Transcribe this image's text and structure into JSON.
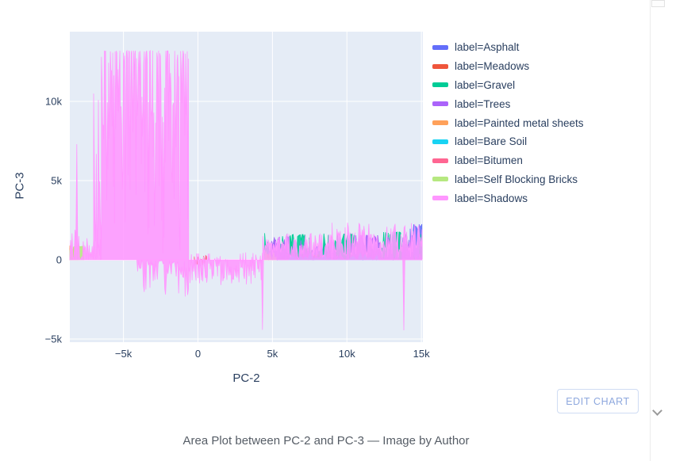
{
  "caption": "Area Plot between PC-2 and PC-3 — Image by Author",
  "edit_chart": {
    "label": "EDIT CHART"
  },
  "colors": {
    "panel_bg": "#E5ECF6",
    "grid": "#FFFFFF",
    "tick_text": "#2a3f5f",
    "caption_text": "#565d66",
    "edit_button_text": "#8ea8de",
    "edit_button_border": "#cfdcf3"
  },
  "chart_data": {
    "type": "area",
    "title": "",
    "xlabel": "PC-2",
    "ylabel": "PC-3",
    "xlim": [
      -8600,
      15100
    ],
    "ylim": [
      -5200,
      14400
    ],
    "grid": true,
    "legend_position": "right",
    "x_ticks": [
      {
        "value": -5000,
        "label": "−5k"
      },
      {
        "value": 0,
        "label": "0"
      },
      {
        "value": 5000,
        "label": "5k"
      },
      {
        "value": 10000,
        "label": "10k"
      },
      {
        "value": 15000,
        "label": "15k"
      }
    ],
    "y_ticks": [
      {
        "value": 10000,
        "label": "10k"
      },
      {
        "value": 5000,
        "label": "5k"
      },
      {
        "value": 0,
        "label": "0"
      },
      {
        "value": -5000,
        "label": "−5k"
      }
    ],
    "series": [
      {
        "name": "Asphalt",
        "legend": "label=Asphalt",
        "color": "#636EFA",
        "segments": [
          [
            4900,
            15050,
            0,
            1250,
            "spiky",
            110
          ],
          [
            14250,
            15050,
            100,
            2250,
            "dense",
            60
          ]
        ],
        "spikes": []
      },
      {
        "name": "Meadows",
        "legend": "label=Meadows",
        "color": "#EF553B",
        "segments": [
          [
            -8600,
            -8050,
            0,
            1000,
            "spiky",
            70
          ],
          [
            5600,
            9600,
            0,
            500,
            "spiky",
            130
          ]
        ],
        "spikes": []
      },
      {
        "name": "Gravel",
        "legend": "label=Gravel",
        "color": "#00CC96",
        "segments": [
          [
            -8600,
            -8250,
            0,
            550,
            "dense",
            60
          ],
          [
            4480,
            15050,
            0,
            1700,
            "spiky",
            75
          ],
          [
            6150,
            7250,
            100,
            1600,
            "dense",
            60
          ],
          [
            9250,
            10550,
            100,
            1650,
            "dense",
            60
          ],
          [
            12350,
            13650,
            100,
            1750,
            "dense",
            60
          ]
        ],
        "spikes": []
      },
      {
        "name": "Trees",
        "legend": "label=Trees",
        "color": "#AB63FA",
        "segments": [
          [
            4700,
            15050,
            0,
            1500,
            "spiky",
            85
          ],
          [
            5150,
            6150,
            100,
            1450,
            "dense",
            65
          ],
          [
            10600,
            12250,
            100,
            1550,
            "dense",
            70
          ],
          [
            13700,
            14300,
            100,
            1500,
            "dense",
            65
          ]
        ],
        "spikes": []
      },
      {
        "name": "Painted metal sheets",
        "legend": "label=Painted metal sheets",
        "color": "#FFA15A",
        "segments": [
          [
            -8600,
            -8180,
            0,
            900,
            "dense",
            60
          ],
          [
            4500,
            4950,
            0,
            850,
            "spiky",
            70
          ]
        ],
        "spikes": []
      },
      {
        "name": "Bare Soil",
        "legend": "label=Bare Soil",
        "color": "#19D3F3",
        "segments": [
          [
            6100,
            12100,
            0,
            430,
            "spiky",
            160
          ]
        ],
        "spikes": []
      },
      {
        "name": "Bitumen",
        "legend": "label=Bitumen",
        "color": "#FF6692",
        "segments": [
          [
            -8600,
            -8350,
            0,
            1400,
            "spiky",
            60
          ],
          [
            -250,
            600,
            -350,
            300,
            "noise",
            70
          ]
        ],
        "spikes": []
      },
      {
        "name": "Self Blocking Bricks",
        "legend": "label=Self Blocking Bricks",
        "color": "#B6E880",
        "segments": [
          [
            -8600,
            -7650,
            0,
            850,
            "dense",
            60
          ],
          [
            4480,
            5250,
            0,
            650,
            "spiky",
            85
          ]
        ],
        "spikes": []
      },
      {
        "name": "Shadows",
        "legend": "label=Shadows",
        "color": "#FF97FF",
        "segments": [
          [
            -8600,
            -6550,
            0,
            2300,
            "spiky",
            50
          ],
          [
            -7000,
            -6480,
            0,
            11000,
            "spiky",
            45
          ],
          [
            -6480,
            -620,
            300,
            13200,
            "dense",
            40
          ],
          [
            -4100,
            -620,
            -2500,
            -50,
            "spiky",
            55
          ],
          [
            -620,
            4350,
            -1600,
            500,
            "noise",
            45
          ],
          [
            4350,
            9000,
            80,
            1700,
            "noise",
            55
          ],
          [
            9000,
            15050,
            150,
            2350,
            "noise",
            55
          ]
        ],
        "spikes": [
          [
            -8130,
            7300,
            70
          ],
          [
            4330,
            -4420,
            70
          ],
          [
            13820,
            -4450,
            70
          ]
        ]
      }
    ]
  }
}
